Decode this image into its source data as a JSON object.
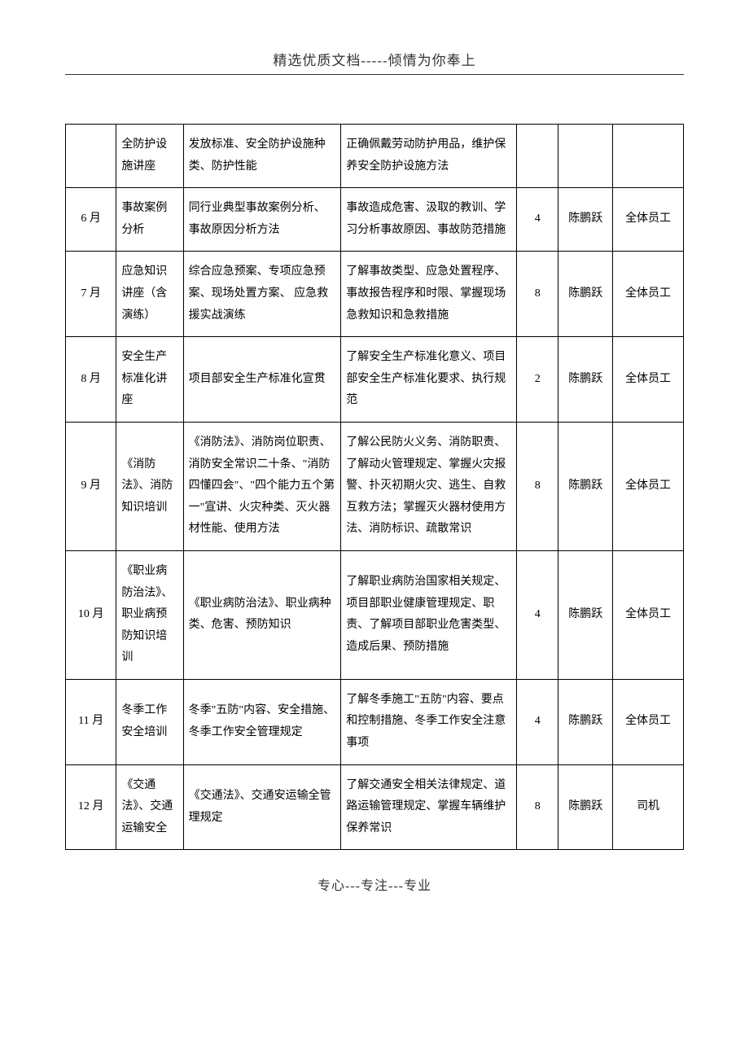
{
  "header": {
    "title": "精选优质文档-----倾情为你奉上"
  },
  "footer": {
    "text": "专心---专注---专业"
  },
  "table": {
    "rows": [
      {
        "month": "",
        "topic": "全防护设施讲座",
        "content": "发放标准、安全防护设施种类、防护性能",
        "goal": "正确佩戴劳动防护用品，维护保养安全防护设施方法",
        "hours": "",
        "person": "",
        "target": ""
      },
      {
        "month": "6 月",
        "topic": "事故案例分析",
        "content": "同行业典型事故案例分析、事故原因分析方法",
        "goal": "事故造成危害、汲取的教训、学习分析事故原因、事故防范措施",
        "hours": "4",
        "person": "陈鹏跃",
        "target": "全体员工"
      },
      {
        "month": "7 月",
        "topic": "应急知识讲座（含演练）",
        "content": "综合应急预案、专项应急预案、现场处置方案、\n应急救援实战演练",
        "goal": "了解事故类型、应急处置程序、事故报告程序和时限、掌握现场急救知识和急救措施",
        "hours": "8",
        "person": "陈鹏跃",
        "target": "全体员工"
      },
      {
        "month": "8 月",
        "topic": "安全生产标准化讲座",
        "content": "项目部安全生产标准化宣贯",
        "goal": "了解安全生产标准化意义、项目部安全生产标准化要求、执行规范",
        "hours": "2",
        "person": "陈鹏跃",
        "target": "全体员工"
      },
      {
        "month": "9 月",
        "topic": "《消防法》、消防知识培训",
        "content": "《消防法》、消防岗位职责、消防安全常识二十条、\"消防四懂四会\"、\"四个能力五个第一\"宣讲、火灾种类、灭火器材性能、使用方法",
        "goal": "了解公民防火义务、消防职责、了解动火管理规定、掌握火灾报警、扑灭初期火灾、逃生、自救互救方法；掌握灭火器材使用方法、消防标识、疏散常识",
        "hours": "8",
        "person": "陈鹏跃",
        "target": "全体员工"
      },
      {
        "month": "10 月",
        "topic": "《职业病防治法》、职业病预防知识培训",
        "content": "《职业病防治法》、职业病种类、危害、预防知识",
        "goal": "了解职业病防治国家相关规定、项目部职业健康管理规定、职责、了解项目部职业危害类型、造成后果、预防措施",
        "hours": "4",
        "person": "陈鹏跃",
        "target": "全体员工"
      },
      {
        "month": "11 月",
        "topic": "冬季工作安全培训",
        "content": "冬季\"五防\"内容、安全措施、冬季工作安全管理规定",
        "goal": "了解冬季施工\"五防\"内容、要点和控制措施、冬季工作安全注意事项",
        "hours": "4",
        "person": "陈鹏跃",
        "target": "全体员工"
      },
      {
        "month": "12 月",
        "topic": "《交通法》、交通运输安全",
        "content": "《交通法》、交通安运输全管理规定",
        "goal": "了解交通安全相关法律规定、道路运输管理规定、掌握车辆维护保养常识",
        "hours": "8",
        "person": "陈鹏跃",
        "target": "司机"
      }
    ]
  }
}
